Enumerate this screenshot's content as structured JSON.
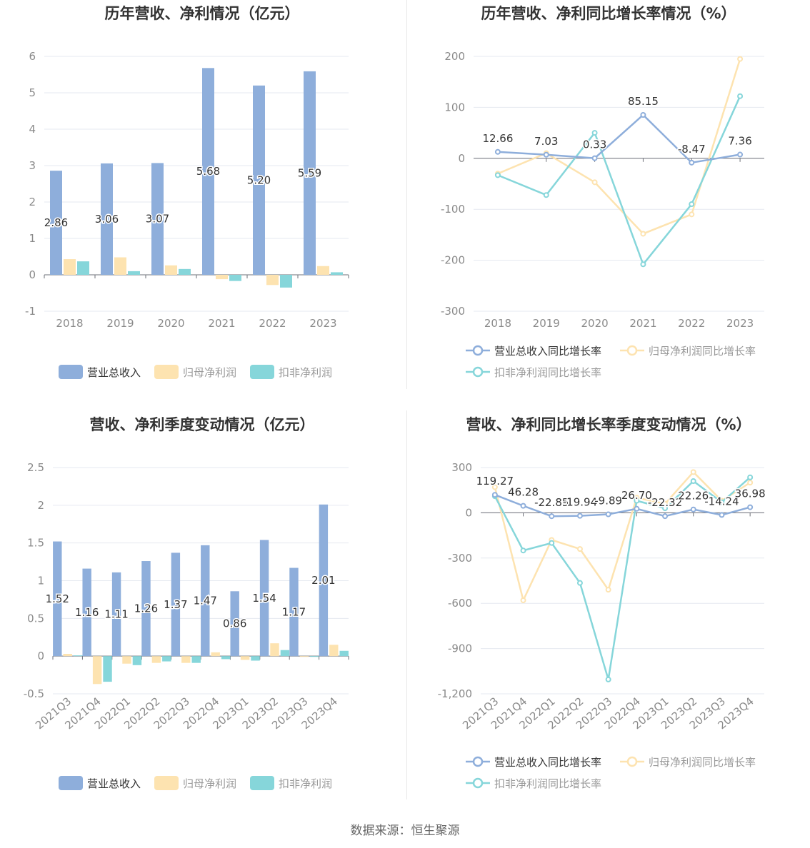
{
  "colors": {
    "revenue": "#8eaedb",
    "net_profit": "#fde3b0",
    "deducted_profit": "#86d6da",
    "grid": "#e6e9f0",
    "axis_text": "#8a8a8a",
    "title": "#333333"
  },
  "footer_text": "数据来源：恒生聚源",
  "chart_data": [
    {
      "type": "bar",
      "title": "历年营收、净利情况（亿元）",
      "categories": [
        "2018",
        "2019",
        "2020",
        "2021",
        "2022",
        "2023"
      ],
      "ylim": [
        -1,
        6
      ],
      "yticks": [
        -1,
        0,
        1,
        2,
        3,
        4,
        5,
        6
      ],
      "ytick_labels": [
        "-1",
        "0",
        "1",
        "2",
        "3",
        "4",
        "5",
        "6"
      ],
      "grid": true,
      "legend_position": "bottom",
      "series": [
        {
          "name": "营业总收入",
          "values": [
            2.86,
            3.06,
            3.07,
            5.68,
            5.2,
            5.59
          ],
          "labels": [
            "2.86",
            "3.06",
            "3.07",
            "5.68",
            "5.20",
            "5.59"
          ]
        },
        {
          "name": "归母净利润",
          "values": [
            0.43,
            0.48,
            0.26,
            -0.12,
            -0.28,
            0.24
          ]
        },
        {
          "name": "扣非净利润",
          "values": [
            0.37,
            0.1,
            0.16,
            -0.17,
            -0.35,
            0.07
          ]
        }
      ]
    },
    {
      "type": "line",
      "title": "历年营收、净利同比增长率情况（%）",
      "categories": [
        "2018",
        "2019",
        "2020",
        "2021",
        "2022",
        "2023"
      ],
      "ylim": [
        -300,
        200
      ],
      "yticks": [
        -300,
        -200,
        -100,
        0,
        100,
        200
      ],
      "ytick_labels": [
        "-300",
        "-200",
        "-100",
        "0",
        "100",
        "200"
      ],
      "grid": true,
      "legend_position": "bottom",
      "series": [
        {
          "name": "营业总收入同比增长率",
          "values": [
            12.66,
            7.03,
            0.33,
            85.15,
            -8.47,
            7.36
          ],
          "labels": [
            "12.66",
            "7.03",
            "0.33",
            "85.15",
            "-8.47",
            "7.36"
          ]
        },
        {
          "name": "归母净利润同比增长率",
          "values": [
            -30,
            10,
            -47,
            -148,
            -110,
            195
          ]
        },
        {
          "name": "扣非净利润同比增长率",
          "values": [
            -33,
            -72,
            50,
            -208,
            -90,
            122
          ]
        }
      ]
    },
    {
      "type": "bar",
      "title": "营收、净利季度变动情况（亿元）",
      "categories": [
        "2021Q3",
        "2021Q4",
        "2022Q1",
        "2022Q2",
        "2022Q3",
        "2022Q4",
        "2023Q1",
        "2023Q2",
        "2023Q3",
        "2023Q4"
      ],
      "ylim": [
        -0.5,
        2.5
      ],
      "yticks": [
        -0.5,
        0,
        0.5,
        1,
        1.5,
        2,
        2.5
      ],
      "ytick_labels": [
        "-0.5",
        "0",
        "0.5",
        "1",
        "1.5",
        "2",
        "2.5"
      ],
      "grid": true,
      "legend_position": "bottom",
      "series": [
        {
          "name": "营业总收入",
          "values": [
            1.52,
            1.16,
            1.11,
            1.26,
            1.37,
            1.47,
            0.86,
            1.54,
            1.17,
            2.01
          ],
          "labels": [
            "1.52",
            "1.16",
            "1.11",
            "1.26",
            "1.37",
            "1.47",
            "0.86",
            "1.54",
            "1.17",
            "2.01"
          ]
        },
        {
          "name": "归母净利润",
          "values": [
            0.03,
            -0.37,
            -0.1,
            -0.09,
            -0.09,
            0.05,
            -0.05,
            0.17,
            -0.01,
            0.15
          ]
        },
        {
          "name": "扣非净利润",
          "values": [
            0.01,
            -0.34,
            -0.12,
            -0.07,
            -0.09,
            -0.04,
            -0.06,
            0.08,
            -0.01,
            0.07
          ]
        }
      ]
    },
    {
      "type": "line",
      "title": "营收、净利同比增长率季度变动情况（%）",
      "categories": [
        "2021Q3",
        "2021Q4",
        "2022Q1",
        "2022Q2",
        "2022Q3",
        "2022Q4",
        "2023Q1",
        "2023Q2",
        "2023Q3",
        "2023Q4"
      ],
      "ylim": [
        -1200,
        300
      ],
      "yticks": [
        -1200,
        -900,
        -600,
        -300,
        0,
        300
      ],
      "ytick_labels": [
        "-1,200",
        "-900",
        "-600",
        "-300",
        "0",
        "300"
      ],
      "grid": true,
      "legend_position": "bottom",
      "series": [
        {
          "name": "营业总收入同比增长率",
          "values": [
            119.27,
            46.28,
            -22.85,
            -19.94,
            -9.89,
            26.7,
            -22.32,
            22.26,
            -14.24,
            36.98
          ],
          "labels": [
            "119.27",
            "46.28",
            "-22.85",
            "-19.94",
            "-9.89",
            "26.70",
            "-22.32",
            "22.26",
            "-14.24",
            "36.98"
          ]
        },
        {
          "name": "归母净利润同比增长率",
          "values": [
            170,
            -580,
            -180,
            -240,
            -510,
            100,
            60,
            270,
            80,
            200
          ]
        },
        {
          "name": "扣非净利润同比增长率",
          "values": [
            110,
            -250,
            -200,
            -465,
            -1105,
            80,
            30,
            210,
            70,
            235
          ]
        }
      ]
    }
  ]
}
